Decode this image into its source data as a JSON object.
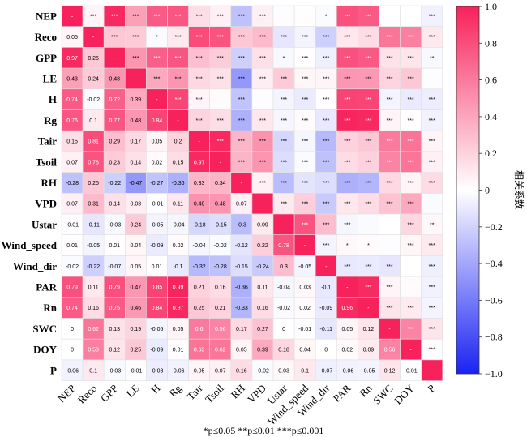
{
  "chart_data": {
    "type": "heatmap",
    "variables": [
      "NEP",
      "Reco",
      "GPP",
      "LE",
      "H",
      "Rg",
      "Tair",
      "Tsoil",
      "RH",
      "VPD",
      "Ustar",
      "Wind_speed",
      "Wind_dir",
      "PAR",
      "Rn",
      "SWC",
      "DOY",
      "P"
    ],
    "matrix": [
      [
        1,
        "***",
        "***",
        "***",
        "***",
        "***",
        "***",
        "***",
        "***",
        "***",
        "",
        "",
        "*",
        "***",
        "***",
        "",
        "",
        "***"
      ],
      [
        0.05,
        1,
        "***",
        "***",
        "*",
        "***",
        "***",
        "***",
        "***",
        "***",
        "***",
        "***",
        "***",
        "***",
        "***",
        "***",
        "***",
        "***"
      ],
      [
        0.97,
        0.25,
        1,
        "***",
        "***",
        "***",
        "***",
        "***",
        "***",
        "***",
        "*",
        "***",
        "***",
        "***",
        "***",
        "***",
        "***",
        "**"
      ],
      [
        0.43,
        0.24,
        0.48,
        1,
        "***",
        "***",
        "***",
        "***",
        "***",
        "***",
        "***",
        "***",
        "***",
        "***",
        "***",
        "***",
        "***",
        ""
      ],
      [
        0.74,
        -0.02,
        0.72,
        0.39,
        1,
        "***",
        "***",
        "",
        "***",
        "",
        "***",
        "***",
        "***",
        "***",
        "***",
        "***",
        "***",
        "***"
      ],
      [
        0.76,
        0.1,
        0.77,
        0.48,
        0.84,
        1,
        "***",
        "***",
        "***",
        "***",
        "***",
        "***",
        "***",
        "***",
        "***",
        "***",
        "***",
        "***"
      ],
      [
        0.15,
        0.81,
        0.29,
        0.17,
        0.05,
        0.2,
        1,
        "***",
        "***",
        "***",
        "***",
        "***",
        "***",
        "***",
        "***",
        "***",
        "***",
        "***"
      ],
      [
        0.07,
        0.78,
        0.23,
        0.14,
        0.02,
        0.15,
        0.97,
        1,
        "***",
        "***",
        "***",
        "***",
        "***",
        "***",
        "***",
        "***",
        "***",
        "***"
      ],
      [
        -0.28,
        0.25,
        -0.22,
        -0.47,
        -0.27,
        -0.36,
        0.33,
        0.34,
        1,
        "***",
        "***",
        "***",
        "***",
        "***",
        "***",
        "***",
        "***",
        "***"
      ],
      [
        0.07,
        0.31,
        0.14,
        0.08,
        -0.01,
        0.11,
        0.49,
        0.48,
        0.07,
        1,
        "***",
        "***",
        "***",
        "***",
        "***",
        "***",
        "***",
        ""
      ],
      [
        -0.01,
        -0.11,
        -0.03,
        0.24,
        -0.05,
        -0.04,
        -0.18,
        -0.15,
        -0.3,
        0.09,
        1,
        "***",
        "***",
        "***",
        "",
        "",
        "***",
        "**"
      ],
      [
        0.01,
        -0.05,
        0.01,
        0.04,
        -0.09,
        0.02,
        -0.04,
        -0.02,
        -0.12,
        0.22,
        0.78,
        1,
        "***",
        "*",
        "*",
        "",
        "***",
        "***"
      ],
      [
        -0.02,
        -0.22,
        -0.07,
        0.05,
        0.01,
        -0.1,
        -0.32,
        -0.28,
        -0.15,
        -0.24,
        0.3,
        -0.05,
        1,
        "***",
        "***",
        "***",
        "",
        "***"
      ],
      [
        0.79,
        0.11,
        0.79,
        0.47,
        0.85,
        0.99,
        0.21,
        0.16,
        -0.36,
        0.11,
        -0.04,
        0.03,
        -0.1,
        1,
        "***",
        "***",
        "",
        "***"
      ],
      [
        0.74,
        0.16,
        0.75,
        0.46,
        0.84,
        0.97,
        0.25,
        0.21,
        -0.33,
        0.16,
        -0.02,
        0.02,
        -0.09,
        0.96,
        1,
        "***",
        "***",
        "***"
      ],
      [
        0,
        0.62,
        0.13,
        0.19,
        -0.05,
        0.05,
        0.6,
        0.56,
        0.17,
        0.27,
        0,
        -0.01,
        -0.11,
        0.05,
        0.12,
        1,
        "***",
        "***"
      ],
      [
        0,
        0.58,
        0.12,
        0.25,
        -0.09,
        0.01,
        0.63,
        0.62,
        0.05,
        0.39,
        0.18,
        0.04,
        0,
        0.02,
        0.09,
        0.56,
        1,
        "***"
      ],
      [
        -0.06,
        0.1,
        -0.03,
        -0.01,
        -0.08,
        -0.06,
        0.05,
        0.07,
        0.16,
        -0.02,
        0.03,
        0.1,
        -0.07,
        -0.06,
        -0.05,
        0.12,
        -0.01,
        1
      ]
    ],
    "colorbar": {
      "title": "相关系数",
      "range": [
        -1,
        1
      ],
      "ticks": [
        "1.0",
        "0.8",
        "0.6",
        "0.4",
        "0.2",
        "0",
        "−0.2",
        "−0.4",
        "−0.6",
        "−0.8",
        "−1.0"
      ]
    },
    "colors": {
      "positive": "#f7225b",
      "neutral": "#ffffff",
      "negative": "#1a23f2"
    },
    "diagonal_label": "-",
    "footnote": "*p≤0.05   **p≤0.01   ***p≤0.001"
  }
}
